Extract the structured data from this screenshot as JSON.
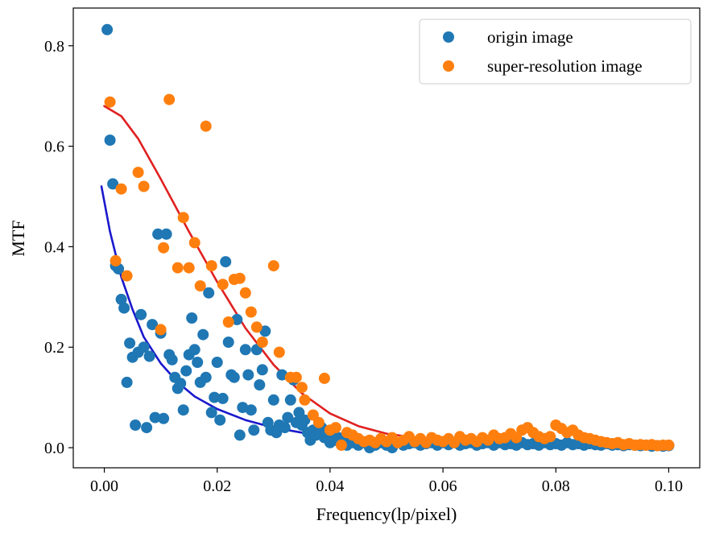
{
  "chart_data": {
    "type": "scatter",
    "title": "",
    "xlabel": "Frequency(lp/pixel)",
    "ylabel": "MTF",
    "xlim": [
      -0.0055,
      0.1055
    ],
    "ylim": [
      -0.04,
      0.875
    ],
    "xticks": [
      0.0,
      0.02,
      0.04,
      0.06,
      0.08,
      0.1
    ],
    "xtick_labels": [
      "0.00",
      "0.02",
      "0.04",
      "0.06",
      "0.08",
      "0.10"
    ],
    "yticks": [
      0.0,
      0.2,
      0.4,
      0.6,
      0.8
    ],
    "ytick_labels": [
      "0.0",
      "0.2",
      "0.4",
      "0.6",
      "0.8"
    ],
    "grid": false,
    "legend_position": "top-right",
    "series": [
      {
        "name": "origin image",
        "color": "#1f77b4",
        "points": [
          [
            0.0005,
            0.832
          ],
          [
            0.001,
            0.612
          ],
          [
            0.0015,
            0.525
          ],
          [
            0.002,
            0.362
          ],
          [
            0.0025,
            0.356
          ],
          [
            0.003,
            0.295
          ],
          [
            0.0035,
            0.278
          ],
          [
            0.004,
            0.13
          ],
          [
            0.0045,
            0.208
          ],
          [
            0.005,
            0.18
          ],
          [
            0.0055,
            0.045
          ],
          [
            0.006,
            0.19
          ],
          [
            0.0065,
            0.265
          ],
          [
            0.007,
            0.2
          ],
          [
            0.0075,
            0.04
          ],
          [
            0.008,
            0.182
          ],
          [
            0.0085,
            0.245
          ],
          [
            0.009,
            0.06
          ],
          [
            0.0095,
            0.425
          ],
          [
            0.01,
            0.228
          ],
          [
            0.0105,
            0.058
          ],
          [
            0.011,
            0.425
          ],
          [
            0.0115,
            0.185
          ],
          [
            0.012,
            0.175
          ],
          [
            0.0125,
            0.14
          ],
          [
            0.013,
            0.118
          ],
          [
            0.0135,
            0.128
          ],
          [
            0.014,
            0.075
          ],
          [
            0.0145,
            0.153
          ],
          [
            0.015,
            0.185
          ],
          [
            0.0155,
            0.258
          ],
          [
            0.016,
            0.195
          ],
          [
            0.0165,
            0.17
          ],
          [
            0.017,
            0.13
          ],
          [
            0.0175,
            0.225
          ],
          [
            0.018,
            0.14
          ],
          [
            0.0185,
            0.308
          ],
          [
            0.019,
            0.07
          ],
          [
            0.0195,
            0.1
          ],
          [
            0.02,
            0.17
          ],
          [
            0.0205,
            0.055
          ],
          [
            0.021,
            0.098
          ],
          [
            0.0215,
            0.37
          ],
          [
            0.022,
            0.21
          ],
          [
            0.0225,
            0.145
          ],
          [
            0.023,
            0.14
          ],
          [
            0.0235,
            0.255
          ],
          [
            0.024,
            0.025
          ],
          [
            0.0245,
            0.08
          ],
          [
            0.025,
            0.195
          ],
          [
            0.0255,
            0.145
          ],
          [
            0.026,
            0.075
          ],
          [
            0.0265,
            0.035
          ],
          [
            0.027,
            0.195
          ],
          [
            0.0275,
            0.125
          ],
          [
            0.028,
            0.155
          ],
          [
            0.0285,
            0.232
          ],
          [
            0.029,
            0.05
          ],
          [
            0.0295,
            0.035
          ],
          [
            0.03,
            0.095
          ],
          [
            0.0305,
            0.03
          ],
          [
            0.031,
            0.045
          ],
          [
            0.0315,
            0.145
          ],
          [
            0.032,
            0.04
          ],
          [
            0.0325,
            0.06
          ],
          [
            0.033,
            0.095
          ],
          [
            0.0335,
            0.135
          ],
          [
            0.034,
            0.05
          ],
          [
            0.0345,
            0.07
          ],
          [
            0.035,
            0.045
          ],
          [
            0.0355,
            0.055
          ],
          [
            0.036,
            0.03
          ],
          [
            0.0365,
            0.015
          ],
          [
            0.037,
            0.035
          ],
          [
            0.0375,
            0.025
          ],
          [
            0.038,
            0.03
          ],
          [
            0.0385,
            0.04
          ],
          [
            0.039,
            0.02
          ],
          [
            0.0395,
            0.03
          ],
          [
            0.04,
            0.01
          ],
          [
            0.0405,
            0.025
          ],
          [
            0.041,
            0.015
          ],
          [
            0.0415,
            0.02
          ],
          [
            0.042,
            0.01
          ],
          [
            0.0425,
            0.015
          ],
          [
            0.043,
            0.005
          ],
          [
            0.044,
            0.01
          ],
          [
            0.045,
            0.005
          ],
          [
            0.046,
            0.01
          ],
          [
            0.047,
            0.0
          ],
          [
            0.048,
            0.005
          ],
          [
            0.049,
            0.01
          ],
          [
            0.05,
            0.005
          ],
          [
            0.051,
            0.0
          ],
          [
            0.052,
            0.01
          ],
          [
            0.053,
            0.005
          ],
          [
            0.054,
            0.008
          ],
          [
            0.055,
            0.01
          ],
          [
            0.056,
            0.005
          ],
          [
            0.057,
            0.008
          ],
          [
            0.058,
            0.01
          ],
          [
            0.059,
            0.005
          ],
          [
            0.06,
            0.01
          ],
          [
            0.061,
            0.006
          ],
          [
            0.062,
            0.01
          ],
          [
            0.063,
            0.005
          ],
          [
            0.064,
            0.008
          ],
          [
            0.065,
            0.01
          ],
          [
            0.066,
            0.005
          ],
          [
            0.067,
            0.008
          ],
          [
            0.068,
            0.01
          ],
          [
            0.069,
            0.005
          ],
          [
            0.07,
            0.01
          ],
          [
            0.071,
            0.006
          ],
          [
            0.072,
            0.008
          ],
          [
            0.073,
            0.005
          ],
          [
            0.074,
            0.01
          ],
          [
            0.075,
            0.006
          ],
          [
            0.076,
            0.008
          ],
          [
            0.077,
            0.005
          ],
          [
            0.078,
            0.01
          ],
          [
            0.079,
            0.006
          ],
          [
            0.08,
            0.008
          ],
          [
            0.081,
            0.005
          ],
          [
            0.082,
            0.01
          ],
          [
            0.083,
            0.006
          ],
          [
            0.084,
            0.008
          ],
          [
            0.085,
            0.005
          ],
          [
            0.086,
            0.008
          ],
          [
            0.087,
            0.006
          ],
          [
            0.088,
            0.005
          ],
          [
            0.089,
            0.008
          ],
          [
            0.09,
            0.005
          ],
          [
            0.091,
            0.006
          ],
          [
            0.092,
            0.004
          ],
          [
            0.093,
            0.006
          ],
          [
            0.094,
            0.005
          ],
          [
            0.095,
            0.004
          ],
          [
            0.096,
            0.005
          ],
          [
            0.097,
            0.003
          ],
          [
            0.098,
            0.004
          ],
          [
            0.099,
            0.003
          ],
          [
            0.1,
            0.004
          ]
        ]
      },
      {
        "name": "super-resolution image",
        "color": "#ff7f0e",
        "points": [
          [
            0.001,
            0.688
          ],
          [
            0.002,
            0.372
          ],
          [
            0.003,
            0.515
          ],
          [
            0.004,
            0.342
          ],
          [
            0.006,
            0.548
          ],
          [
            0.007,
            0.52
          ],
          [
            0.01,
            0.235
          ],
          [
            0.0105,
            0.398
          ],
          [
            0.0115,
            0.693
          ],
          [
            0.013,
            0.358
          ],
          [
            0.014,
            0.458
          ],
          [
            0.015,
            0.358
          ],
          [
            0.016,
            0.408
          ],
          [
            0.017,
            0.322
          ],
          [
            0.018,
            0.64
          ],
          [
            0.019,
            0.362
          ],
          [
            0.021,
            0.325
          ],
          [
            0.022,
            0.25
          ],
          [
            0.023,
            0.335
          ],
          [
            0.024,
            0.337
          ],
          [
            0.025,
            0.308
          ],
          [
            0.026,
            0.27
          ],
          [
            0.027,
            0.24
          ],
          [
            0.028,
            0.21
          ],
          [
            0.03,
            0.362
          ],
          [
            0.031,
            0.19
          ],
          [
            0.033,
            0.14
          ],
          [
            0.034,
            0.14
          ],
          [
            0.035,
            0.12
          ],
          [
            0.0355,
            0.095
          ],
          [
            0.037,
            0.065
          ],
          [
            0.038,
            0.05
          ],
          [
            0.039,
            0.138
          ],
          [
            0.04,
            0.035
          ],
          [
            0.041,
            0.04
          ],
          [
            0.042,
            0.005
          ],
          [
            0.043,
            0.03
          ],
          [
            0.044,
            0.025
          ],
          [
            0.045,
            0.018
          ],
          [
            0.046,
            0.012
          ],
          [
            0.047,
            0.015
          ],
          [
            0.048,
            0.01
          ],
          [
            0.049,
            0.018
          ],
          [
            0.05,
            0.012
          ],
          [
            0.051,
            0.02
          ],
          [
            0.052,
            0.01
          ],
          [
            0.053,
            0.015
          ],
          [
            0.054,
            0.022
          ],
          [
            0.055,
            0.012
          ],
          [
            0.056,
            0.018
          ],
          [
            0.057,
            0.01
          ],
          [
            0.058,
            0.02
          ],
          [
            0.059,
            0.015
          ],
          [
            0.06,
            0.012
          ],
          [
            0.061,
            0.018
          ],
          [
            0.062,
            0.01
          ],
          [
            0.063,
            0.022
          ],
          [
            0.064,
            0.015
          ],
          [
            0.065,
            0.018
          ],
          [
            0.066,
            0.012
          ],
          [
            0.067,
            0.02
          ],
          [
            0.068,
            0.015
          ],
          [
            0.069,
            0.025
          ],
          [
            0.07,
            0.018
          ],
          [
            0.071,
            0.02
          ],
          [
            0.072,
            0.028
          ],
          [
            0.073,
            0.02
          ],
          [
            0.074,
            0.035
          ],
          [
            0.075,
            0.04
          ],
          [
            0.076,
            0.03
          ],
          [
            0.077,
            0.022
          ],
          [
            0.078,
            0.018
          ],
          [
            0.079,
            0.022
          ],
          [
            0.08,
            0.045
          ],
          [
            0.081,
            0.038
          ],
          [
            0.082,
            0.03
          ],
          [
            0.083,
            0.035
          ],
          [
            0.084,
            0.025
          ],
          [
            0.085,
            0.02
          ],
          [
            0.086,
            0.018
          ],
          [
            0.087,
            0.015
          ],
          [
            0.088,
            0.012
          ],
          [
            0.089,
            0.01
          ],
          [
            0.09,
            0.008
          ],
          [
            0.091,
            0.01
          ],
          [
            0.092,
            0.006
          ],
          [
            0.093,
            0.008
          ],
          [
            0.094,
            0.005
          ],
          [
            0.095,
            0.006
          ],
          [
            0.096,
            0.005
          ],
          [
            0.097,
            0.006
          ],
          [
            0.098,
            0.004
          ],
          [
            0.099,
            0.005
          ],
          [
            0.1,
            0.005
          ]
        ]
      }
    ],
    "fit_lines": [
      {
        "color": "#1919cc",
        "points": [
          [
            -0.0005,
            0.52
          ],
          [
            0.001,
            0.43
          ],
          [
            0.003,
            0.34
          ],
          [
            0.005,
            0.275
          ],
          [
            0.007,
            0.22
          ],
          [
            0.01,
            0.168
          ],
          [
            0.013,
            0.13
          ],
          [
            0.016,
            0.102
          ],
          [
            0.02,
            0.077
          ],
          [
            0.025,
            0.055
          ],
          [
            0.03,
            0.04
          ],
          [
            0.035,
            0.03
          ],
          [
            0.04,
            0.023
          ],
          [
            0.05,
            0.016
          ],
          [
            0.06,
            0.013
          ],
          [
            0.07,
            0.011
          ],
          [
            0.08,
            0.01
          ],
          [
            0.095,
            0.009
          ]
        ]
      },
      {
        "color": "#e02020",
        "points": [
          [
            0.0,
            0.68
          ],
          [
            0.003,
            0.66
          ],
          [
            0.006,
            0.615
          ],
          [
            0.01,
            0.535
          ],
          [
            0.015,
            0.43
          ],
          [
            0.02,
            0.33
          ],
          [
            0.025,
            0.238
          ],
          [
            0.03,
            0.165
          ],
          [
            0.035,
            0.108
          ],
          [
            0.04,
            0.068
          ],
          [
            0.045,
            0.043
          ],
          [
            0.05,
            0.028
          ],
          [
            0.055,
            0.02
          ],
          [
            0.06,
            0.015
          ],
          [
            0.07,
            0.011
          ],
          [
            0.08,
            0.009
          ],
          [
            0.095,
            0.008
          ]
        ]
      }
    ]
  }
}
